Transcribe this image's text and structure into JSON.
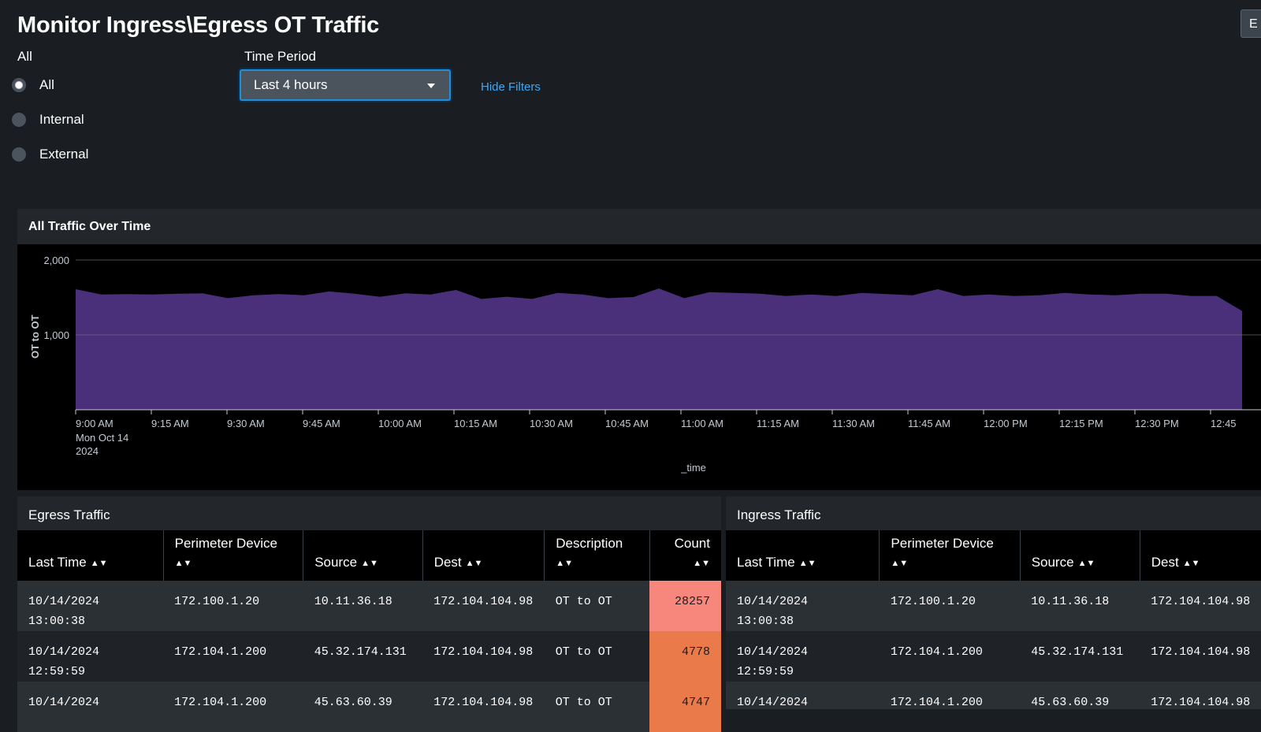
{
  "header": {
    "title": "Monitor Ingress\\Egress OT Traffic",
    "edit_label": "E"
  },
  "filters": {
    "radio_group_label": "All",
    "radio_options": [
      {
        "label": "All",
        "checked": true
      },
      {
        "label": "Internal",
        "checked": false
      },
      {
        "label": "External",
        "checked": false
      }
    ],
    "time_period_label": "Time Period",
    "time_period_value": "Last 4 hours",
    "hide_filters_label": "Hide Filters"
  },
  "traffic_panel": {
    "title": "All Traffic Over Time"
  },
  "chart_data": {
    "type": "area",
    "title": "All Traffic Over Time",
    "xlabel": "_time",
    "ylabel": "OT to OT",
    "ylim": [
      0,
      2000
    ],
    "yticks": [
      "2,000",
      "1,000"
    ],
    "xticks": [
      "9:00 AM",
      "9:15 AM",
      "9:30 AM",
      "9:45 AM",
      "10:00 AM",
      "10:15 AM",
      "10:30 AM",
      "10:45 AM",
      "11:00 AM",
      "11:15 AM",
      "11:30 AM",
      "11:45 AM",
      "12:00 PM",
      "12:15 PM",
      "12:30 PM",
      "12:45"
    ],
    "xtick_first_sublabel": [
      "Mon Oct 14",
      "2024"
    ],
    "grid": true,
    "color": "#4a2f7a",
    "series": [
      {
        "values": [
          1610,
          1540,
          1545,
          1540,
          1550,
          1555,
          1490,
          1530,
          1545,
          1530,
          1580,
          1550,
          1510,
          1555,
          1540,
          1600,
          1480,
          1510,
          1480,
          1560,
          1540,
          1490,
          1505,
          1620,
          1490,
          1570,
          1560,
          1550,
          1520,
          1540,
          1520,
          1560,
          1545,
          1530,
          1610,
          1520,
          1540,
          1520,
          1530,
          1560,
          1540,
          1530,
          1550,
          1550,
          1520,
          1520,
          1320
        ]
      }
    ]
  },
  "egress": {
    "title": "Egress Traffic",
    "columns": [
      "Last Time",
      "Perimeter Device",
      "Source",
      "Dest",
      "Description",
      "Count"
    ],
    "rows": [
      {
        "last_time": [
          "10/14/2024",
          "13:00:38"
        ],
        "device": "172.100.1.20",
        "source": "10.11.36.18",
        "dest": "172.104.104.98",
        "description": "OT to OT",
        "count": "28257",
        "count_color": "#f7877d"
      },
      {
        "last_time": [
          "10/14/2024",
          "12:59:59"
        ],
        "device": "172.104.1.200",
        "source": "45.32.174.131",
        "dest": "172.104.104.98",
        "description": "OT to OT",
        "count": "4778",
        "count_color": "#ea7a4a"
      },
      {
        "last_time": [
          "10/14/2024",
          ""
        ],
        "device": "172.104.1.200",
        "source": "45.63.60.39",
        "dest": "172.104.104.98",
        "description": "OT to OT",
        "count": "4747",
        "count_color": "#ea7a4a"
      }
    ]
  },
  "ingress": {
    "title": "Ingress Traffic",
    "columns": [
      "Last Time",
      "Perimeter Device",
      "Source",
      "Dest"
    ],
    "rows": [
      {
        "last_time": [
          "10/14/2024",
          "13:00:38"
        ],
        "device": "172.100.1.20",
        "source": "10.11.36.18",
        "dest": "172.104.104.98"
      },
      {
        "last_time": [
          "10/14/2024",
          "12:59:59"
        ],
        "device": "172.104.1.200",
        "source": "45.32.174.131",
        "dest": "172.104.104.98"
      },
      {
        "last_time": [
          "10/14/2024",
          ""
        ],
        "device": "172.104.1.200",
        "source": "45.63.60.39",
        "dest": "172.104.104.98"
      }
    ]
  }
}
